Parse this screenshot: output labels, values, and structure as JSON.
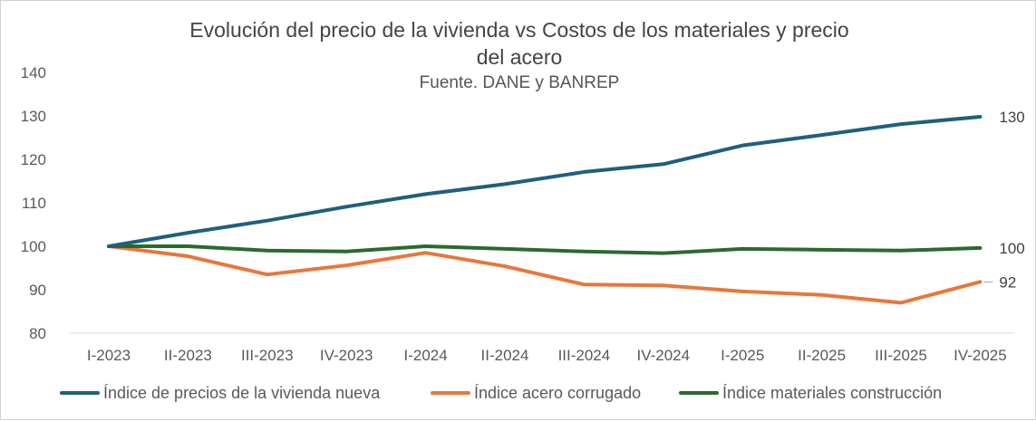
{
  "chart_data": {
    "type": "line",
    "title_line1": "Evolución del precio de la vivienda vs Costos de los materiales y precio",
    "title_line2": "del acero",
    "subtitle": "Fuente. DANE y BANREP",
    "categories": [
      "I-2023",
      "II-2023",
      "III-2023",
      "IV-2023",
      "I-2024",
      "II-2024",
      "III-2024",
      "IV-2024",
      "I-2025",
      "II-2025",
      "III-2025",
      "IV-2025"
    ],
    "y_ticks": [
      "140",
      "130",
      "120",
      "110",
      "100",
      "90",
      "80"
    ],
    "ylim": [
      80,
      140
    ],
    "grid": false,
    "legend_position": "bottom",
    "series": [
      {
        "name": "Índice de precios de la vivienda nueva",
        "color": "#1f5f7f",
        "values": [
          100,
          103.1,
          105.9,
          109.1,
          112.0,
          114.3,
          117.1,
          118.9,
          123.2,
          125.6,
          128.1,
          129.8
        ],
        "end_label": "130"
      },
      {
        "name": "Índice acero corrugado",
        "color": "#e8773a",
        "values": [
          100,
          97.7,
          93.5,
          95.6,
          98.5,
          95.4,
          91.2,
          91.0,
          89.6,
          88.8,
          87.0,
          91.8
        ],
        "end_label": "92"
      },
      {
        "name": "Índice materiales construcción",
        "color": "#2a6a2e",
        "values": [
          100,
          100.0,
          99.0,
          98.8,
          100.0,
          99.4,
          98.8,
          98.4,
          99.4,
          99.2,
          99.0,
          99.6
        ],
        "end_label": "100"
      }
    ]
  }
}
